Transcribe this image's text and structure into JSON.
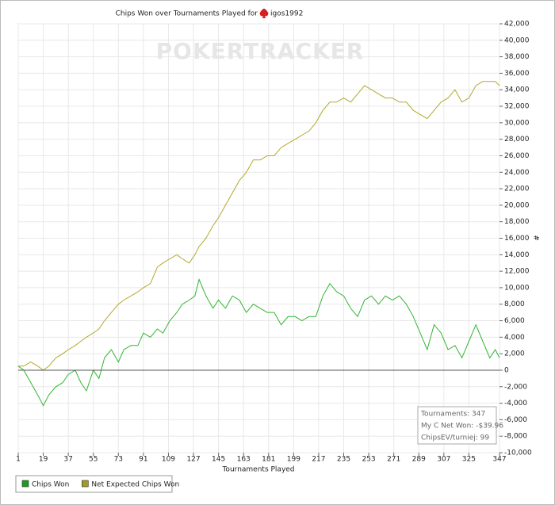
{
  "chart_data": {
    "type": "line",
    "title": "Chips Won over Tournaments Played for",
    "player": "igos1992",
    "watermark": "POKERTRACKER",
    "x_label": "Tournaments Played",
    "y_label": "#",
    "annotation": [
      "Tournaments: 347",
      "My C Net Won: -$39.96",
      "ChipsEV/turniej: 99"
    ],
    "x": [
      1,
      5,
      10,
      15,
      19,
      23,
      28,
      33,
      37,
      42,
      46,
      50,
      55,
      59,
      63,
      68,
      73,
      77,
      82,
      87,
      91,
      96,
      101,
      105,
      110,
      115,
      119,
      124,
      128,
      131,
      136,
      141,
      145,
      150,
      155,
      160,
      165,
      170,
      175,
      180,
      185,
      190,
      195,
      200,
      205,
      210,
      215,
      220,
      225,
      230,
      235,
      240,
      245,
      250,
      255,
      260,
      265,
      270,
      275,
      280,
      285,
      290,
      295,
      300,
      305,
      310,
      315,
      320,
      325,
      330,
      335,
      340,
      344,
      347
    ],
    "series": [
      {
        "name": "Chips Won",
        "color": "#33b533",
        "values": [
          500,
          0,
          -1500,
          -3000,
          -4300,
          -3000,
          -2000,
          -1500,
          -500,
          0,
          -1500,
          -2500,
          0,
          -1000,
          1500,
          2500,
          1000,
          2500,
          3000,
          3000,
          4500,
          4000,
          5000,
          4500,
          6000,
          7000,
          8000,
          8500,
          9000,
          11000,
          9000,
          7500,
          8500,
          7500,
          9000,
          8500,
          7000,
          8000,
          7500,
          7000,
          7000,
          5500,
          6500,
          6500,
          6000,
          6500,
          6500,
          9000,
          10500,
          9500,
          9000,
          7500,
          6500,
          8500,
          9000,
          8000,
          9000,
          8500,
          9000,
          8000,
          6500,
          4500,
          2500,
          5500,
          4500,
          2500,
          3000,
          1500,
          3500,
          5500,
          3500,
          1500,
          2500,
          1500
        ]
      },
      {
        "name": "Net Expected Chips Won",
        "color": "#b3a82c",
        "values": [
          500,
          500,
          1000,
          500,
          0,
          500,
          1500,
          2000,
          2500,
          3000,
          3500,
          4000,
          4500,
          5000,
          6000,
          7000,
          8000,
          8500,
          9000,
          9500,
          10000,
          10500,
          12500,
          13000,
          13500,
          14000,
          13500,
          13000,
          14000,
          15000,
          16000,
          17500,
          18500,
          20000,
          21500,
          23000,
          24000,
          25500,
          25500,
          26000,
          26000,
          27000,
          27500,
          28000,
          28500,
          29000,
          30000,
          31500,
          32500,
          32500,
          33000,
          32500,
          33500,
          34500,
          34000,
          33500,
          33000,
          33000,
          32500,
          32500,
          31500,
          31000,
          30500,
          31500,
          32500,
          33000,
          34000,
          32500,
          33000,
          34500,
          35000,
          35000,
          35000,
          34500
        ]
      }
    ],
    "legend_colors": [
      "#1e9a1e",
      "#a39a22"
    ],
    "xlim": [
      1,
      347
    ],
    "xticks": [
      1,
      19,
      37,
      55,
      73,
      91,
      109,
      127,
      145,
      163,
      181,
      199,
      217,
      235,
      253,
      271,
      289,
      307,
      325,
      347
    ],
    "ylim": [
      -10000,
      42000
    ],
    "yticks": [
      {
        "value": -10000,
        "label": "-10,000"
      },
      {
        "value": -8000,
        "label": "-8,000"
      },
      {
        "value": -6000,
        "label": "-6,000"
      },
      {
        "value": -4000,
        "label": "-4,000"
      },
      {
        "value": -2000,
        "label": "-2,000"
      },
      0,
      {
        "value": 2000,
        "label": "2,000"
      },
      {
        "value": 4000,
        "label": "4,000"
      },
      {
        "value": 6000,
        "label": "6,000"
      },
      {
        "value": 8000,
        "label": "8,000"
      },
      {
        "value": 10000,
        "label": "10,000"
      },
      {
        "value": 12000,
        "label": "12,000"
      },
      {
        "value": 14000,
        "label": "14,000"
      },
      {
        "value": 16000,
        "label": "16,000"
      },
      {
        "value": 18000,
        "label": "18,000"
      },
      {
        "value": 20000,
        "label": "20,000"
      },
      {
        "value": 22000,
        "label": "22,000"
      },
      {
        "value": 24000,
        "label": "24,000"
      },
      {
        "value": 26000,
        "label": "26,000"
      },
      {
        "value": 28000,
        "label": "28,000"
      },
      {
        "value": 30000,
        "label": "30,000"
      },
      {
        "value": 32000,
        "label": "32,000"
      },
      {
        "value": 34000,
        "label": "34,000"
      },
      {
        "value": 36000,
        "label": "36,000"
      },
      {
        "value": 38000,
        "label": "38,000"
      },
      {
        "value": 40000,
        "label": "40,000"
      },
      {
        "value": 42000,
        "label": "42,000"
      }
    ],
    "grid": true
  }
}
